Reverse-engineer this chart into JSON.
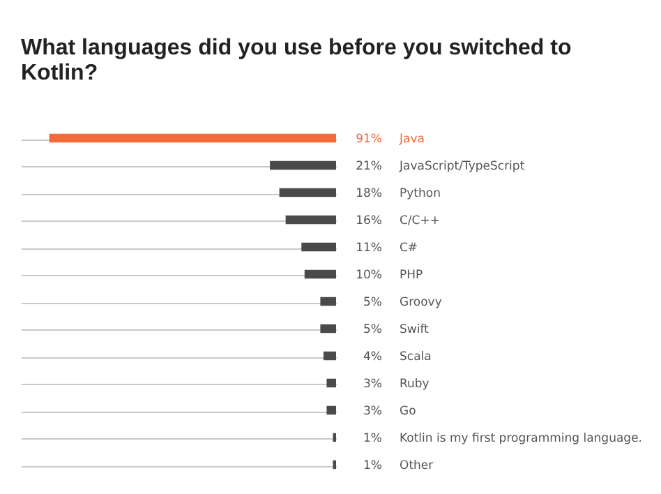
{
  "chart_data": {
    "type": "bar",
    "orientation": "horizontal",
    "title": "What languages did you use before you switched to Kotlin?",
    "categories": [
      "Java",
      "JavaScript/TypeScript",
      "Python",
      "C/C++",
      "C#",
      "PHP",
      "Groovy",
      "Swift",
      "Scala",
      "Ruby",
      "Go",
      "Kotlin is my first programming language.",
      "Other"
    ],
    "values": [
      91,
      21,
      18,
      16,
      11,
      10,
      5,
      5,
      4,
      3,
      3,
      1,
      1
    ],
    "value_labels": [
      "91%",
      "21%",
      "18%",
      "16%",
      "11%",
      "10%",
      "5%",
      "5%",
      "4%",
      "3%",
      "3%",
      "1%",
      "1%"
    ],
    "colors": [
      "#f26b38",
      "#4a4a4a",
      "#4a4a4a",
      "#4a4a4a",
      "#4a4a4a",
      "#4a4a4a",
      "#4a4a4a",
      "#4a4a4a",
      "#4a4a4a",
      "#4a4a4a",
      "#4a4a4a",
      "#4a4a4a",
      "#4a4a4a"
    ],
    "xlim": [
      100,
      0
    ],
    "grid": "y",
    "tick_labels": "y"
  }
}
